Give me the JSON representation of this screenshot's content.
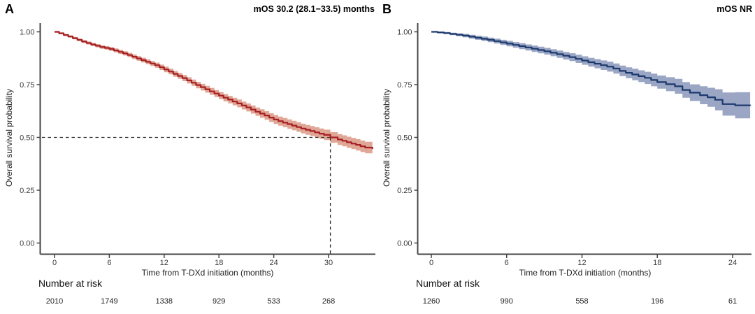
{
  "figure": {
    "background_color": "#ffffff",
    "axis_color": "#454545",
    "tick_text_color": "#3a3a3a"
  },
  "chart_data": [
    {
      "type": "line",
      "subtype": "kaplan-meier-step",
      "panel_label": "A",
      "title": "mOS 30.2 (28.1−33.5) months",
      "xlabel": "Time from T-DXd initiation (months)",
      "ylabel": "Overall survival probability",
      "x_ticks": [
        0,
        6,
        12,
        18,
        24,
        30
      ],
      "y_tick_labels": [
        "1.00",
        "0.75",
        "0.50",
        "0.25",
        "0.00"
      ],
      "xlim": [
        0,
        34.8
      ],
      "ylim": [
        0,
        1
      ],
      "grid": false,
      "legend": "none",
      "line_color": "#a61f24",
      "band_color": "#e0a796",
      "median_reference": {
        "time": 30.2,
        "probability": 0.5,
        "style": "dashed"
      },
      "series": [
        {
          "name": "Overall survival",
          "points": [
            [
              0,
              1
            ],
            [
              0.5,
              0.993
            ],
            [
              1,
              0.985
            ],
            [
              1.5,
              0.978
            ],
            [
              2,
              0.97
            ],
            [
              2.5,
              0.962
            ],
            [
              3,
              0.954
            ],
            [
              3.5,
              0.947
            ],
            [
              4,
              0.94
            ],
            [
              4.5,
              0.934
            ],
            [
              5,
              0.928
            ],
            [
              5.5,
              0.924
            ],
            [
              6,
              0.919
            ],
            [
              6.5,
              0.912
            ],
            [
              7,
              0.905
            ],
            [
              7.5,
              0.898
            ],
            [
              8,
              0.89
            ],
            [
              8.5,
              0.882
            ],
            [
              9,
              0.874
            ],
            [
              9.5,
              0.866
            ],
            [
              10,
              0.858
            ],
            [
              10.5,
              0.85
            ],
            [
              11,
              0.842
            ],
            [
              11.5,
              0.832
            ],
            [
              12,
              0.822
            ],
            [
              12.5,
              0.812
            ],
            [
              13,
              0.801
            ],
            [
              13.5,
              0.791
            ],
            [
              14,
              0.781
            ],
            [
              14.5,
              0.77
            ],
            [
              15,
              0.759
            ],
            [
              15.5,
              0.748
            ],
            [
              16,
              0.738
            ],
            [
              16.5,
              0.728
            ],
            [
              17,
              0.718
            ],
            [
              17.5,
              0.708
            ],
            [
              18,
              0.698
            ],
            [
              18.5,
              0.688
            ],
            [
              19,
              0.679
            ],
            [
              19.5,
              0.67
            ],
            [
              20,
              0.661
            ],
            [
              20.5,
              0.651
            ],
            [
              21,
              0.642
            ],
            [
              21.5,
              0.632
            ],
            [
              22,
              0.622
            ],
            [
              22.5,
              0.613
            ],
            [
              23,
              0.604
            ],
            [
              23.5,
              0.594
            ],
            [
              24,
              0.585
            ],
            [
              24.5,
              0.577
            ],
            [
              25,
              0.57
            ],
            [
              25.5,
              0.563
            ],
            [
              26,
              0.556
            ],
            [
              26.5,
              0.549
            ],
            [
              27,
              0.542
            ],
            [
              27.5,
              0.536
            ],
            [
              28,
              0.53
            ],
            [
              28.5,
              0.524
            ],
            [
              29,
              0.518
            ],
            [
              29.5,
              0.512
            ],
            [
              30.2,
              0.5
            ],
            [
              31,
              0.49
            ],
            [
              31.5,
              0.484
            ],
            [
              32,
              0.477
            ],
            [
              32.5,
              0.471
            ],
            [
              33,
              0.465
            ],
            [
              33.5,
              0.458
            ],
            [
              34,
              0.452
            ],
            [
              34.8,
              0.445
            ]
          ]
        }
      ],
      "band_halfwidth": {
        "t": [
          0,
          6,
          12,
          18,
          24,
          30,
          34.8
        ],
        "hw": [
          0.004,
          0.009,
          0.013,
          0.017,
          0.021,
          0.025,
          0.028
        ]
      },
      "number_at_risk": {
        "header": "Number at risk",
        "times": [
          0,
          6,
          12,
          18,
          24,
          30
        ],
        "counts": [
          2010,
          1749,
          1338,
          929,
          533,
          268
        ]
      }
    },
    {
      "type": "line",
      "subtype": "kaplan-meier-step",
      "panel_label": "B",
      "title": "mOS NR",
      "xlabel": "Time from T-DXd initiation (months)",
      "ylabel": "Overall survival probability",
      "x_ticks": [
        0,
        6,
        12,
        18,
        24
      ],
      "y_tick_labels": [
        "1.00",
        "0.75",
        "0.50",
        "0.25",
        "0.00"
      ],
      "xlim": [
        0,
        25.4
      ],
      "ylim": [
        0,
        1
      ],
      "grid": false,
      "legend": "none",
      "line_color": "#1c3a6d",
      "band_color": "#9aa6c4",
      "median_reference": null,
      "series": [
        {
          "name": "Overall survival",
          "points": [
            [
              0,
              1
            ],
            [
              0.5,
              0.997
            ],
            [
              1,
              0.994
            ],
            [
              1.5,
              0.99
            ],
            [
              2,
              0.986
            ],
            [
              2.5,
              0.982
            ],
            [
              3,
              0.977
            ],
            [
              3.5,
              0.972
            ],
            [
              4,
              0.967
            ],
            [
              4.5,
              0.962
            ],
            [
              5,
              0.956
            ],
            [
              5.5,
              0.95
            ],
            [
              6,
              0.944
            ],
            [
              6.5,
              0.938
            ],
            [
              7,
              0.932
            ],
            [
              7.5,
              0.926
            ],
            [
              8,
              0.92
            ],
            [
              8.5,
              0.914
            ],
            [
              9,
              0.908
            ],
            [
              9.5,
              0.901
            ],
            [
              10,
              0.894
            ],
            [
              10.5,
              0.887
            ],
            [
              11,
              0.88
            ],
            [
              11.5,
              0.872
            ],
            [
              12,
              0.864
            ],
            [
              12.5,
              0.856
            ],
            [
              13,
              0.849
            ],
            [
              13.5,
              0.842
            ],
            [
              14,
              0.835
            ],
            [
              14.5,
              0.826
            ],
            [
              15,
              0.815
            ],
            [
              15.5,
              0.806
            ],
            [
              16,
              0.798
            ],
            [
              16.5,
              0.79
            ],
            [
              17,
              0.782
            ],
            [
              17.5,
              0.772
            ],
            [
              18,
              0.762
            ],
            [
              18.7,
              0.752
            ],
            [
              19.4,
              0.742
            ],
            [
              20,
              0.725
            ],
            [
              20.6,
              0.712
            ],
            [
              21.4,
              0.7
            ],
            [
              22,
              0.69
            ],
            [
              22.6,
              0.678
            ],
            [
              23.2,
              0.658
            ],
            [
              24.2,
              0.652
            ],
            [
              25.4,
              0.65
            ]
          ]
        }
      ],
      "band_halfwidth": {
        "t": [
          0,
          3,
          6,
          9,
          12,
          15,
          18,
          20,
          22,
          23.2,
          24.2,
          25.4
        ],
        "hw": [
          0.003,
          0.009,
          0.013,
          0.016,
          0.02,
          0.025,
          0.031,
          0.037,
          0.045,
          0.055,
          0.062,
          0.07
        ]
      },
      "number_at_risk": {
        "header": "Number at risk",
        "times": [
          0,
          6,
          12,
          18,
          24
        ],
        "counts": [
          1260,
          990,
          558,
          196,
          61
        ]
      }
    }
  ]
}
